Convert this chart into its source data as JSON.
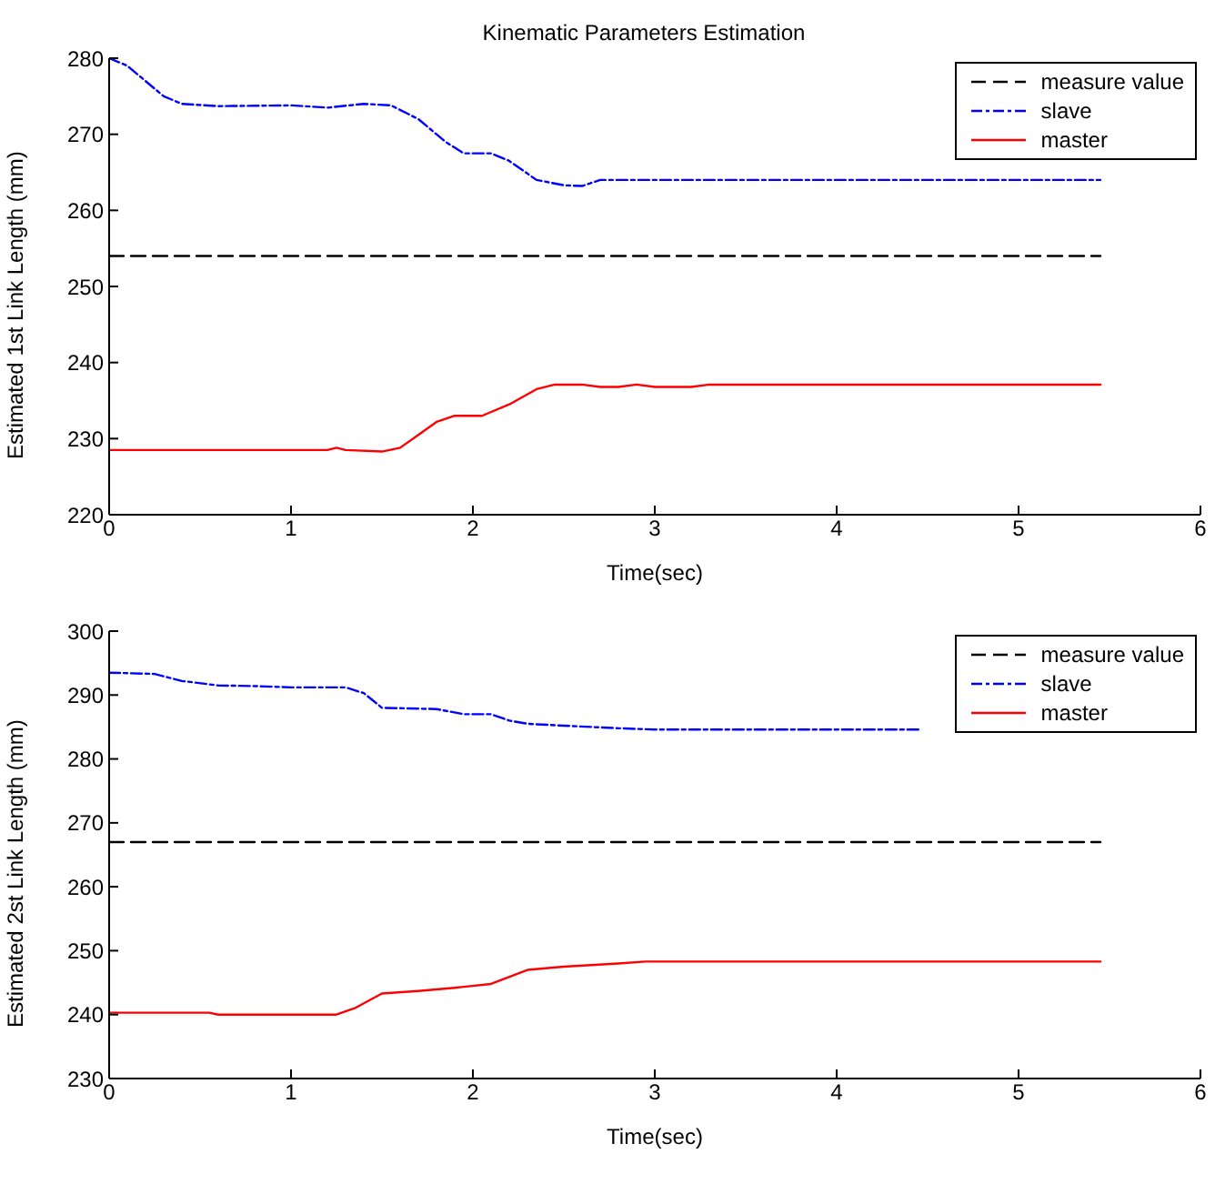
{
  "chart_data": [
    {
      "type": "line",
      "title": "Kinematic Parameters Estimation",
      "xlabel": "Time(sec)",
      "ylabel": "Estimated 1st Link Length (mm)",
      "xlim": [
        0,
        6
      ],
      "xticks": [
        0,
        1,
        2,
        3,
        4,
        5,
        6
      ],
      "ylim": [
        220,
        280
      ],
      "yticks": [
        220,
        230,
        240,
        250,
        260,
        270,
        280
      ],
      "grid": false,
      "legend": "top right",
      "series": [
        {
          "name": "measure value",
          "color": "#000000",
          "line_style": "dashed",
          "x": [
            0,
            5.45
          ],
          "values": [
            254,
            254
          ]
        },
        {
          "name": "slave",
          "color": "#0000ff",
          "line_style": "dashdot",
          "x": [
            0,
            0.1,
            0.2,
            0.3,
            0.4,
            0.6,
            1.0,
            1.2,
            1.4,
            1.55,
            1.7,
            1.85,
            1.95,
            2.1,
            2.2,
            2.35,
            2.5,
            2.6,
            2.7,
            3.0,
            5.45
          ],
          "values": [
            280,
            279,
            277,
            275,
            274,
            273.7,
            273.8,
            273.5,
            274,
            273.8,
            272,
            269,
            267.5,
            267.5,
            266.5,
            264,
            263.3,
            263.2,
            264,
            264,
            264
          ]
        },
        {
          "name": "master",
          "color": "#ff0000",
          "line_style": "solid",
          "x": [
            0,
            1.2,
            1.25,
            1.3,
            1.5,
            1.6,
            1.7,
            1.8,
            1.9,
            2.05,
            2.2,
            2.35,
            2.45,
            2.6,
            2.7,
            2.8,
            2.9,
            3.0,
            3.2,
            3.3,
            5.45
          ],
          "values": [
            228.5,
            228.5,
            228.8,
            228.5,
            228.3,
            228.8,
            230.5,
            232.2,
            233,
            233,
            234.5,
            236.5,
            237.1,
            237.1,
            236.8,
            236.8,
            237.1,
            236.8,
            236.8,
            237.1,
            237.1
          ]
        }
      ]
    },
    {
      "type": "line",
      "xlabel": "Time(sec)",
      "ylabel": "Estimated 2st Link Length (mm)",
      "xlim": [
        0,
        6
      ],
      "xticks": [
        0,
        1,
        2,
        3,
        4,
        5,
        6
      ],
      "ylim": [
        230,
        300
      ],
      "yticks": [
        230,
        240,
        250,
        260,
        270,
        280,
        290,
        300
      ],
      "grid": false,
      "legend": "top right",
      "series": [
        {
          "name": "measure value",
          "color": "#000000",
          "line_style": "dashed",
          "x": [
            0,
            5.45
          ],
          "values": [
            267,
            267
          ]
        },
        {
          "name": "slave",
          "color": "#0000ff",
          "line_style": "dashdot",
          "x": [
            0,
            0.25,
            0.4,
            0.6,
            0.8,
            1.0,
            1.3,
            1.4,
            1.5,
            1.8,
            1.95,
            2.1,
            2.2,
            2.3,
            2.5,
            2.8,
            3.0,
            4.45
          ],
          "values": [
            293.5,
            293.3,
            292.2,
            291.5,
            291.4,
            291.2,
            291.2,
            290.3,
            288,
            287.8,
            287,
            287,
            286,
            285.5,
            285.2,
            284.8,
            284.6,
            284.6
          ]
        },
        {
          "name": "master",
          "color": "#ff0000",
          "line_style": "solid",
          "x": [
            0,
            0.55,
            0.6,
            1.25,
            1.35,
            1.5,
            1.7,
            1.9,
            2.1,
            2.3,
            2.5,
            2.8,
            2.95,
            5.45
          ],
          "values": [
            240.3,
            240.3,
            240,
            240,
            241,
            243.3,
            243.7,
            244.2,
            244.8,
            247,
            247.5,
            248,
            248.3,
            248.3
          ]
        }
      ]
    }
  ]
}
